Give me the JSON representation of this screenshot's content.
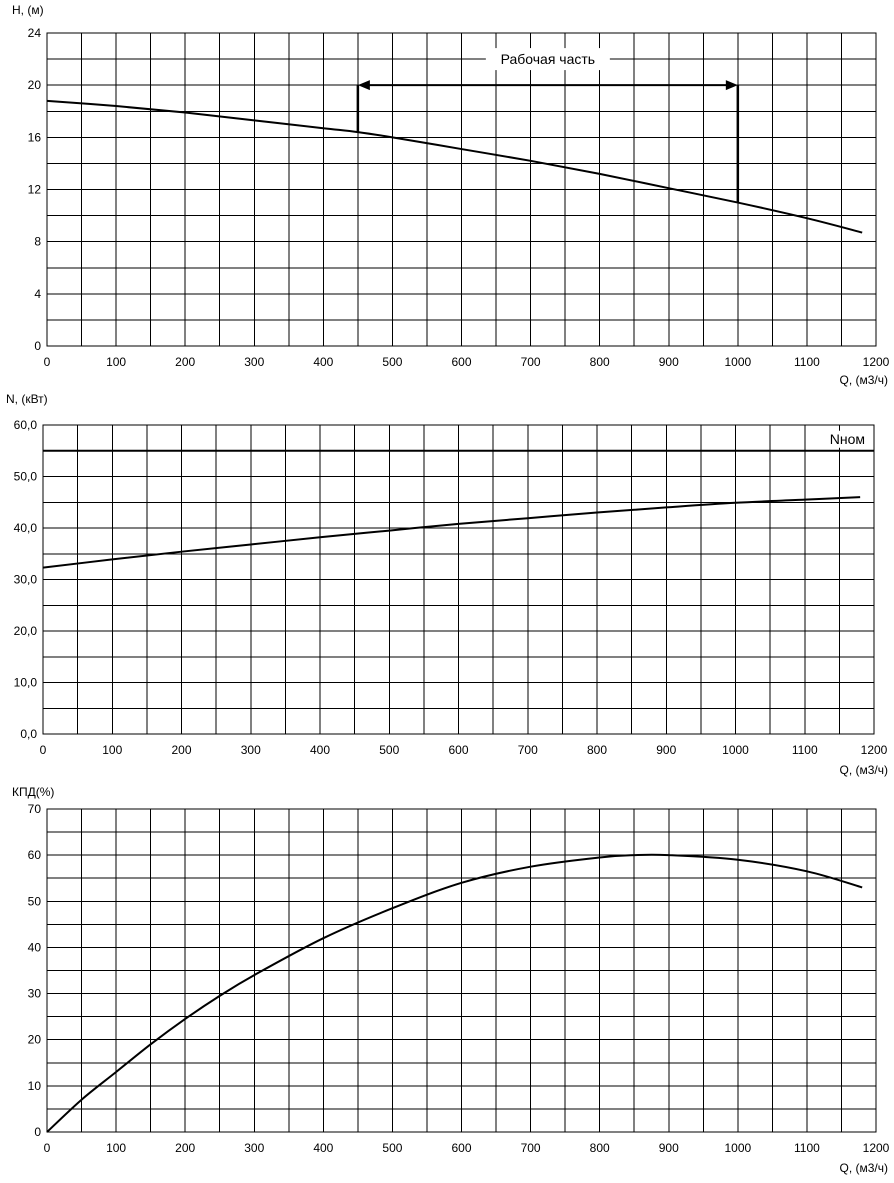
{
  "chart_data": [
    {
      "type": "line",
      "ylabel": "H, (м)",
      "xlabel": "Q, (м3/ч)",
      "xlim": [
        0,
        1200
      ],
      "ylim": [
        0,
        24
      ],
      "x_ticks": [
        0,
        100,
        200,
        300,
        400,
        500,
        600,
        700,
        800,
        900,
        1000,
        1100,
        1200
      ],
      "y_tick_labels": [
        "0",
        "4",
        "8",
        "12",
        "16",
        "20",
        "24"
      ],
      "y_tick_values": [
        0,
        4,
        8,
        12,
        16,
        20,
        24
      ],
      "grid": true,
      "series": [
        {
          "x": [
            0,
            100,
            200,
            300,
            400,
            450,
            500,
            600,
            700,
            800,
            900,
            1000,
            1100,
            1180
          ],
          "y": [
            18.8,
            18.4,
            17.9,
            17.3,
            16.7,
            16.4,
            16.0,
            15.1,
            14.2,
            13.2,
            12.1,
            11.0,
            9.8,
            8.7
          ]
        }
      ],
      "annotation": {
        "text": "Рабочая часть",
        "x_start": 450,
        "x_end": 1000,
        "y_arrow": 20,
        "y_start_bottom": 16.4,
        "y_end_bottom": 11.0
      }
    },
    {
      "type": "line",
      "ylabel": "N, (кВт)",
      "xlabel": "Q, (м3/ч)",
      "xlim": [
        0,
        1200
      ],
      "ylim": [
        0,
        60
      ],
      "x_ticks": [
        0,
        100,
        200,
        300,
        400,
        500,
        600,
        700,
        800,
        900,
        1000,
        1100,
        1200
      ],
      "y_tick_labels": [
        "0,0",
        "10,0",
        "20,0",
        "30,0",
        "40,0",
        "50,0",
        "60,0"
      ],
      "y_tick_values": [
        0,
        10,
        20,
        30,
        40,
        50,
        60
      ],
      "grid": true,
      "series": [
        {
          "x": [
            0,
            100,
            200,
            300,
            400,
            500,
            600,
            700,
            800,
            900,
            1000,
            1100,
            1180
          ],
          "y": [
            32.3,
            33.9,
            35.4,
            36.8,
            38.2,
            39.5,
            40.8,
            41.9,
            43.0,
            44.0,
            44.9,
            45.5,
            46.0
          ]
        }
      ],
      "reference_line": {
        "label": "Nном",
        "y": 55
      }
    },
    {
      "type": "line",
      "ylabel": "КПД(%)",
      "xlabel": "Q, (м3/ч)",
      "xlim": [
        0,
        1200
      ],
      "ylim": [
        0,
        70
      ],
      "x_ticks": [
        0,
        100,
        200,
        300,
        400,
        500,
        600,
        700,
        800,
        900,
        1000,
        1100,
        1200
      ],
      "y_tick_labels": [
        "0",
        "10",
        "20",
        "30",
        "40",
        "50",
        "60",
        "70"
      ],
      "y_tick_values": [
        0,
        10,
        20,
        30,
        40,
        50,
        60,
        70
      ],
      "grid": true,
      "series": [
        {
          "x": [
            0,
            50,
            100,
            150,
            200,
            250,
            300,
            400,
            500,
            600,
            700,
            800,
            850,
            900,
            1000,
            1100,
            1180
          ],
          "y": [
            0,
            7,
            13,
            19,
            24.5,
            29.5,
            34,
            42,
            48.5,
            54,
            57.5,
            59.5,
            60,
            60,
            59,
            56.5,
            53
          ]
        }
      ]
    }
  ]
}
